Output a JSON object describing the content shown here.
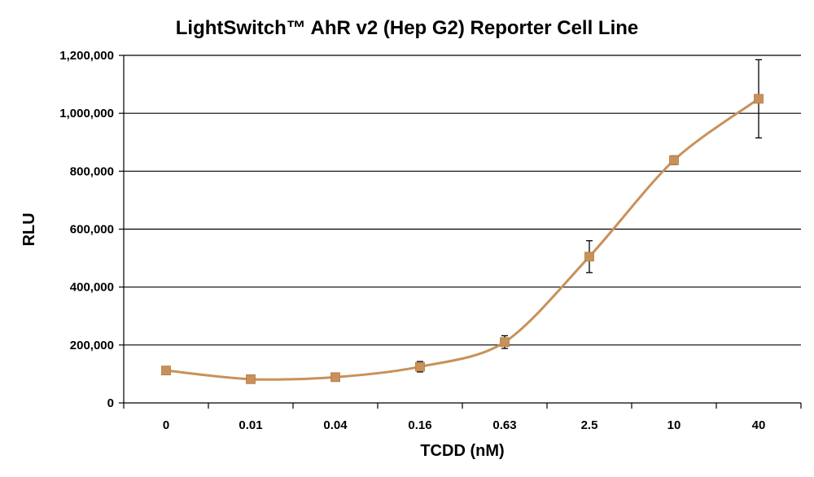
{
  "chart_data": {
    "type": "line",
    "title": "LightSwitch™ AhR v2 (Hep G2) Reporter Cell Line",
    "xlabel": "TCDD (nM)",
    "ylabel": "RLU",
    "categories": [
      "0",
      "0.01",
      "0.04",
      "0.16",
      "0.63",
      "2.5",
      "10",
      "40"
    ],
    "series": [
      {
        "values": [
          112000,
          82000,
          89000,
          125000,
          210000,
          505000,
          838000,
          1050000
        ],
        "error": [
          5000,
          6000,
          6000,
          18000,
          22000,
          55000,
          15000,
          135000
        ],
        "color": "#c8915a",
        "marker": "square"
      }
    ],
    "ylim": [
      0,
      1200000
    ],
    "yticks": [
      0,
      200000,
      400000,
      600000,
      800000,
      1000000,
      1200000
    ],
    "ytick_labels": [
      "0",
      "200,000",
      "400,000",
      "600,000",
      "800,000",
      "1,000,000",
      "1,200,000"
    ],
    "grid": true,
    "legend": "none"
  }
}
